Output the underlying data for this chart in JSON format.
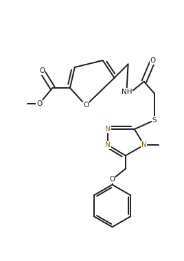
{
  "bg_color": "#ffffff",
  "line_color": "#1a1a1a",
  "hetero_color": "#8B6400",
  "lw": 1.4,
  "fs": 7.5,
  "fig_w": 2.68,
  "fig_h": 3.8,
  "xlim": [
    0,
    268
  ],
  "ylim": [
    0,
    380
  ]
}
